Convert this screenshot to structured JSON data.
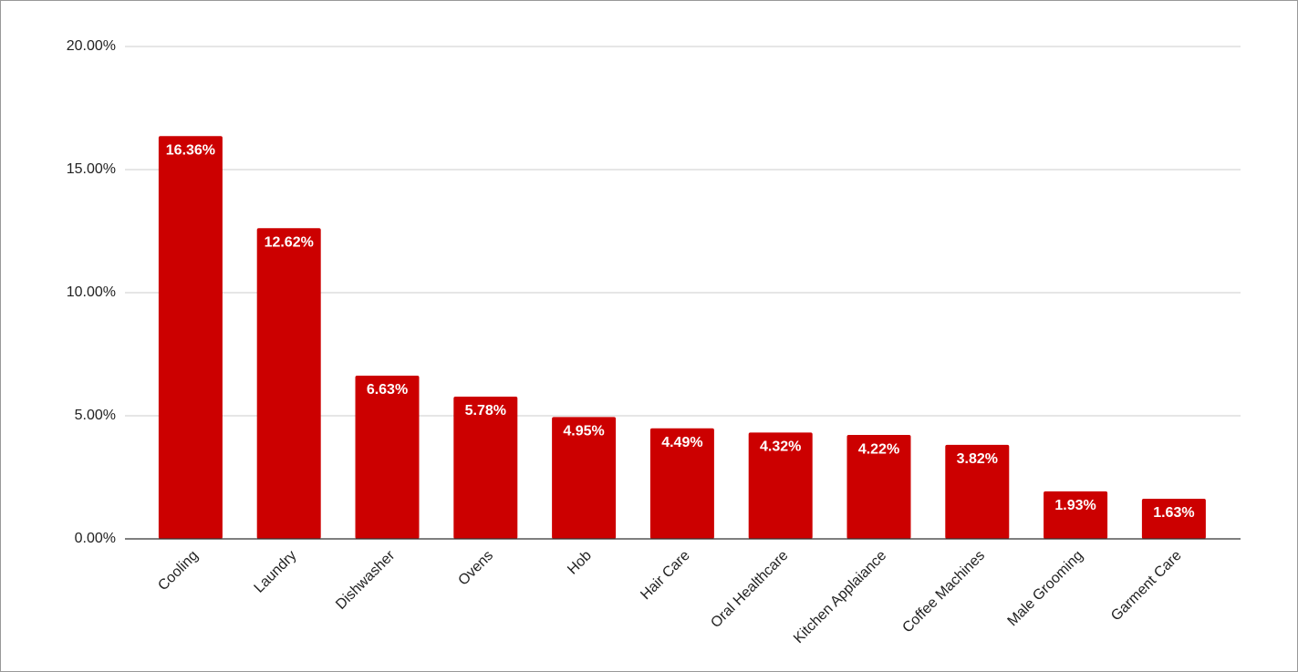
{
  "chart_data": {
    "type": "bar",
    "categories": [
      "Cooling",
      "Laundry",
      "Dishwasher",
      "Ovens",
      "Hob",
      "Hair Care",
      "Oral Healthcare",
      "Kitchen Applaiance",
      "Coffee Machines",
      "Male Grooming",
      "Garment Care"
    ],
    "values": [
      16.36,
      12.62,
      6.63,
      5.78,
      4.95,
      4.49,
      4.32,
      4.22,
      3.82,
      1.93,
      1.63
    ],
    "value_labels": [
      "16.36%",
      "12.62%",
      "6.63%",
      "5.78%",
      "4.95%",
      "4.49%",
      "4.32%",
      "4.22%",
      "3.82%",
      "1.93%",
      "1.63%"
    ],
    "color": "#cc0000",
    "ylim": [
      0,
      20
    ],
    "yticks": [
      {
        "value": 0,
        "label": "0.00%"
      },
      {
        "value": 5,
        "label": "5.00%"
      },
      {
        "value": 10,
        "label": "10.00%"
      },
      {
        "value": 15,
        "label": "15.00%"
      },
      {
        "value": 20,
        "label": "20.00%"
      }
    ],
    "grid": true
  }
}
